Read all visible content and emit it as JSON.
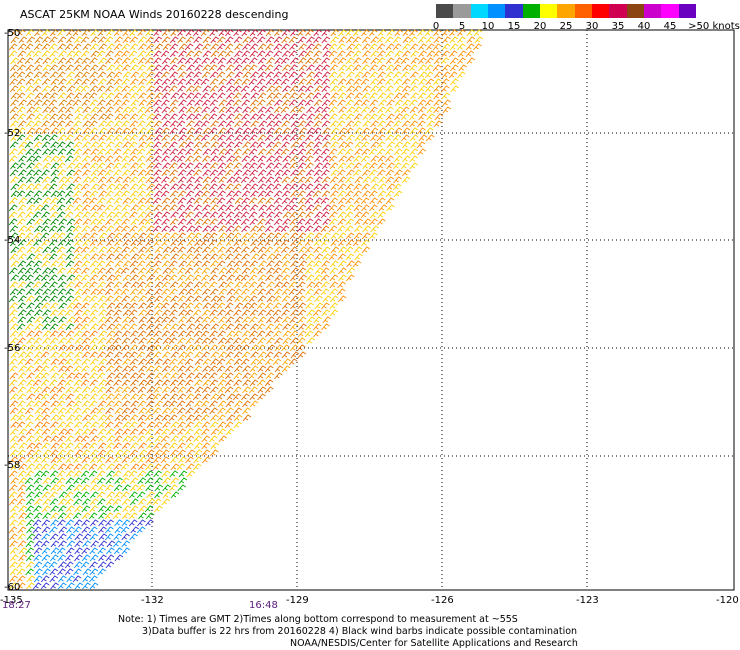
{
  "title": "ASCAT 25KM NOAA Winds 20160228 descending",
  "legend": {
    "labels": [
      "0",
      "5",
      "10",
      "15",
      "20",
      "25",
      "30",
      "35",
      "40",
      "45",
      ">50 knots"
    ],
    "colors": [
      "#4a4a4a",
      "#9a9a9a",
      "#00d8ff",
      "#0090ff",
      "#3030d0",
      "#00b000",
      "#ffff00",
      "#ffa500",
      "#ff6000",
      "#ff0000",
      "#d00050",
      "#8b4513",
      "#cc00cc",
      "#ff00ff",
      "#6a00c0"
    ]
  },
  "axes": {
    "lat_labels": [
      "-50",
      "-52",
      "-54",
      "-56",
      "-58",
      "-60"
    ],
    "lon_labels": [
      "-135",
      "-132",
      "-129",
      "-126",
      "-123",
      "-120"
    ]
  },
  "times": {
    "left": "18:27",
    "mid": "16:48"
  },
  "notes": {
    "line1": "Note: 1) Times are GMT 2)Times along bottom correspond to measurement at ~55S",
    "line2": "3)Data buffer is 22 hrs from 20160228 4) Black wind barbs indicate possible contamination",
    "line3": "NOAA/NESDIS/Center for Satellite Applications and Research"
  }
}
